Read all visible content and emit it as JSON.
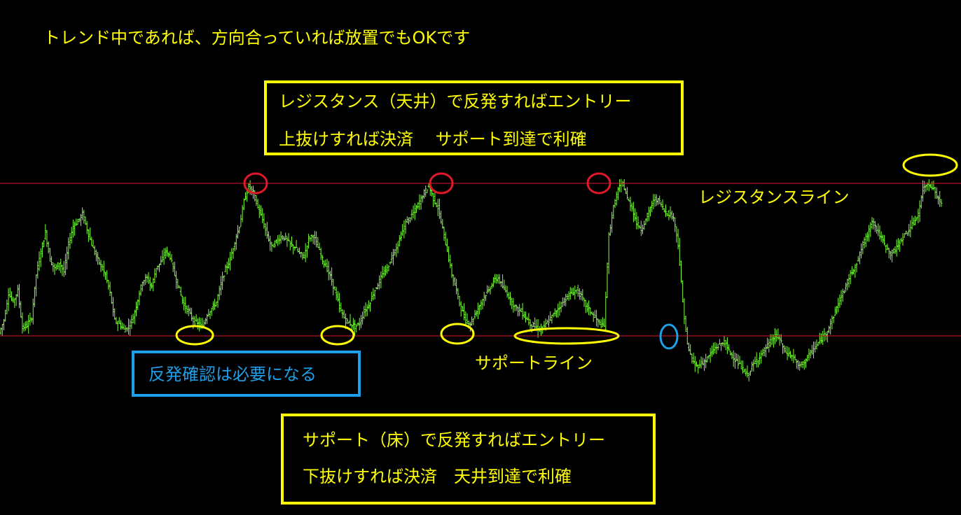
{
  "headline": "トレンド中であれば、方向合っていれば放置でもOKです",
  "resistance_label": "レジスタンスライン",
  "support_label": "サポートライン",
  "top_box": {
    "line1": "レジスタンス（天井）で反発すればエントリー",
    "line2": "上抜けすれば決済　 サポート到達で利確"
  },
  "bottom_box": {
    "line1": "サポート（床）で反発すればエントリー",
    "line2": "下抜けすれば決済　天井到達で利確"
  },
  "blue_box": {
    "text": "反発確認は必要になる"
  },
  "colors": {
    "background": "#000000",
    "candles": "#7dff3a",
    "horizontal_lines": "#e0182a",
    "annotation_yellow": "#ffff00",
    "annotation_blue": "#1e9fe8",
    "circle_red": "#e0182a"
  },
  "chart_data": {
    "type": "line",
    "description_series": "price",
    "resistance_level": 100,
    "support_level": 0,
    "ylim": [
      -36,
      104
    ],
    "grid": false,
    "series": [
      {
        "values": [
          2,
          10,
          28,
          22,
          30,
          5,
          7,
          12,
          40,
          55,
          68,
          50,
          44,
          48,
          42,
          60,
          72,
          75,
          80,
          70,
          60,
          52,
          46,
          40,
          28,
          10,
          8,
          4,
          6,
          12,
          24,
          36,
          38,
          32,
          45,
          48,
          56,
          52,
          40,
          30,
          20,
          16,
          10,
          8,
          6,
          14,
          18,
          22,
          34,
          44,
          50,
          62,
          72,
          88,
          98,
          94,
          84,
          76,
          66,
          58,
          62,
          65,
          64,
          60,
          58,
          54,
          52,
          64,
          66,
          58,
          50,
          44,
          36,
          26,
          16,
          10,
          8,
          6,
          8,
          16,
          20,
          28,
          34,
          40,
          44,
          52,
          58,
          66,
          74,
          78,
          82,
          88,
          94,
          98,
          90,
          84,
          70,
          56,
          40,
          30,
          18,
          10,
          8,
          14,
          20,
          26,
          30,
          36,
          38,
          32,
          28,
          22,
          18,
          16,
          12,
          8,
          6,
          4,
          6,
          10,
          14,
          18,
          22,
          26,
          28,
          30,
          26,
          20,
          16,
          12,
          8,
          6,
          66,
          84,
          96,
          100,
          90,
          84,
          74,
          70,
          76,
          84,
          90,
          88,
          82,
          80,
          78,
          60,
          22,
          -6,
          -16,
          -20,
          -18,
          -16,
          -12,
          -8,
          -6,
          -4,
          -10,
          -14,
          -18,
          -22,
          -26,
          -20,
          -16,
          -12,
          -8,
          -4,
          0,
          -2,
          -10,
          -12,
          -14,
          -20,
          -18,
          -14,
          -10,
          -6,
          -2,
          2,
          8,
          16,
          24,
          30,
          38,
          44,
          50,
          60,
          66,
          76,
          70,
          64,
          58,
          54,
          56,
          62,
          66,
          70,
          74,
          80,
          96,
          100,
          98,
          92,
          86
        ]
      }
    ],
    "annotations": {
      "resistance_touches": 3,
      "support_touches": 4,
      "breakout_above": true,
      "breakdown_below": true
    }
  }
}
